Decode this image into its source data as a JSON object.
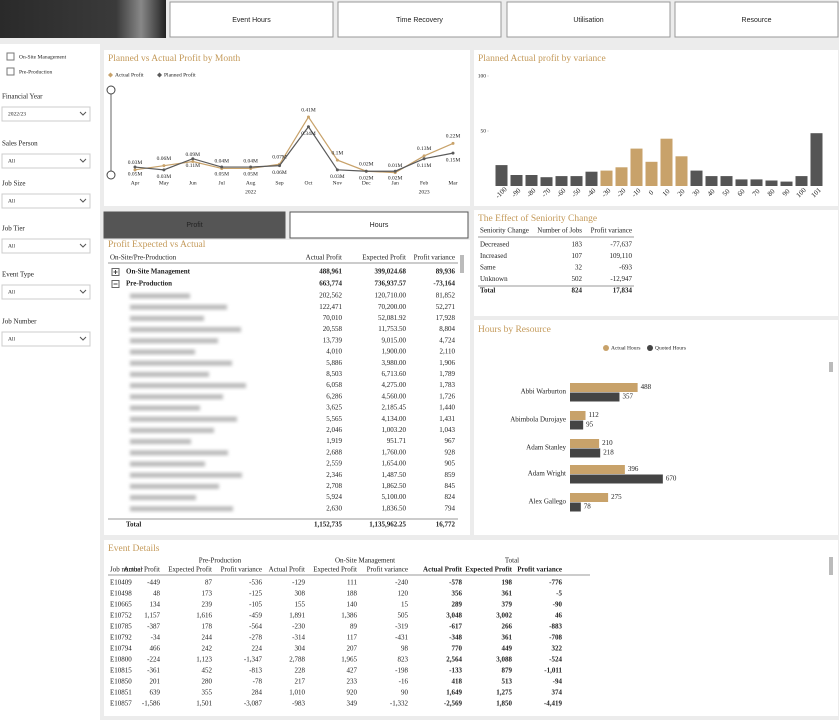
{
  "nav": {
    "buttons": [
      "Event Hours",
      "Time Recovery",
      "Utilisation",
      "Resource"
    ]
  },
  "filters": {
    "checkboxes": [
      "On-Site Management",
      "Pre-Production"
    ],
    "slicers": [
      {
        "label": "Financial Year",
        "value": "2022/23"
      },
      {
        "label": "Sales Person",
        "value": "All"
      },
      {
        "label": "Job Size",
        "value": "All"
      },
      {
        "label": "Job Tier",
        "value": "All"
      },
      {
        "label": "Event Type",
        "value": "All"
      },
      {
        "label": "Job Number",
        "value": "All"
      }
    ]
  },
  "toggle": [
    "Profit",
    "Hours"
  ],
  "chart_data": [
    {
      "type": "line",
      "title": "Planned vs Actual Profit by Month",
      "categories": [
        "Apr",
        "May",
        "Jun",
        "Jul",
        "Aug",
        "Sep",
        "Oct",
        "Nov",
        "Dec",
        "Jan",
        "Feb",
        "Mar"
      ],
      "year_labels": [
        null,
        null,
        null,
        null,
        "2022",
        null,
        null,
        null,
        null,
        null,
        "2023",
        null
      ],
      "series": [
        {
          "name": "Actual Profit",
          "color": "#c8a26a",
          "values": [
            0.03,
            0.06,
            0.09,
            0.04,
            0.04,
            0.07,
            0.41,
            0.1,
            0.02,
            0.01,
            0.13,
            0.22
          ],
          "value_labels": [
            "0.03M",
            "0.06M",
            "0.09M",
            "0.04M",
            "0.04M",
            "0.07M",
            "0.41M",
            "0.1M",
            "0.02M",
            "0.01M",
            "0.13M",
            "0.22M"
          ]
        },
        {
          "name": "Planned Profit",
          "color": "#5a5a5a",
          "values": [
            0.05,
            0.03,
            0.11,
            0.05,
            0.05,
            0.06,
            0.34,
            0.03,
            0.02,
            0.02,
            0.11,
            0.15
          ],
          "value_labels": [
            "0.05M",
            "0.03M",
            "0.11M",
            "0.05M",
            "0.05M",
            "0.06M",
            "0.34M",
            "0.03M",
            "0.02M",
            "0.02M",
            "0.11M",
            "0.15M"
          ]
        }
      ]
    },
    {
      "type": "bar",
      "title": "Planned Actual profit by variance",
      "categories": [
        "-100",
        "-90",
        "-80",
        "-70",
        "-60",
        "-50",
        "-40",
        "-30",
        "-20",
        "-10",
        "0",
        "10",
        "20",
        "30",
        "40",
        "50",
        "60",
        "70",
        "80",
        "90",
        "100",
        "101"
      ],
      "values": [
        19,
        10,
        10,
        8,
        9,
        9,
        13,
        14,
        17,
        34,
        22,
        43,
        27,
        14,
        9,
        9,
        6,
        6,
        5,
        4,
        9,
        48
      ],
      "colors": [
        "#555555",
        "#555555",
        "#555555",
        "#555555",
        "#555555",
        "#555555",
        "#555555",
        "#c8a26a",
        "#c8a26a",
        "#c8a26a",
        "#c8a26a",
        "#c8a26a",
        "#c8a26a",
        "#555555",
        "#555555",
        "#555555",
        "#555555",
        "#555555",
        "#555555",
        "#555555",
        "#555555",
        "#555555"
      ],
      "ylim": [
        0,
        100
      ],
      "yticks": [
        50,
        100
      ]
    },
    {
      "type": "hbar",
      "title": "Hours by Resource",
      "categories": [
        "Abbi Warburton",
        "Abimbola Durojaye",
        "Adam Stanley",
        "Adam Wright",
        "Alex Gallego"
      ],
      "series": [
        {
          "name": "Actual Hours",
          "color": "#c8a26a",
          "values": [
            488,
            112,
            210,
            396,
            275
          ]
        },
        {
          "name": "Quoted Hours",
          "color": "#444444",
          "values": [
            357,
            95,
            218,
            670,
            78
          ]
        }
      ],
      "xlim": [
        0,
        700
      ]
    }
  ],
  "profit_table": {
    "title": "Profit Expected vs Actual",
    "columns": [
      "On-Site/Pre-Production",
      "Actual Profit",
      "Expected Profit",
      "Profit variance"
    ],
    "groups": [
      {
        "label": "On-Site Management",
        "values": [
          "488,961",
          "399,024.68",
          "89,936"
        ]
      },
      {
        "label": "Pre-Production",
        "values": [
          "663,774",
          "736,937.57",
          "-73,164"
        ]
      }
    ],
    "rows": [
      [
        "202,562",
        "120,710.00",
        "81,852"
      ],
      [
        "122,471",
        "70,200.00",
        "52,271"
      ],
      [
        "70,010",
        "52,081.92",
        "17,928"
      ],
      [
        "20,558",
        "11,753.50",
        "8,804"
      ],
      [
        "13,739",
        "9,015.00",
        "4,724"
      ],
      [
        "4,010",
        "1,900.00",
        "2,110"
      ],
      [
        "5,886",
        "3,980.00",
        "1,906"
      ],
      [
        "8,503",
        "6,713.60",
        "1,789"
      ],
      [
        "6,058",
        "4,275.00",
        "1,783"
      ],
      [
        "6,286",
        "4,560.00",
        "1,726"
      ],
      [
        "3,625",
        "2,185.45",
        "1,440"
      ],
      [
        "5,565",
        "4,134.00",
        "1,431"
      ],
      [
        "2,046",
        "1,003.20",
        "1,043"
      ],
      [
        "1,919",
        "951.71",
        "967"
      ],
      [
        "2,688",
        "1,760.00",
        "928"
      ],
      [
        "2,559",
        "1,654.00",
        "905"
      ],
      [
        "2,346",
        "1,487.50",
        "859"
      ],
      [
        "2,708",
        "1,862.50",
        "845"
      ],
      [
        "5,924",
        "5,100.00",
        "824"
      ],
      [
        "2,630",
        "1,836.50",
        "794"
      ]
    ],
    "variance_colors": [
      "#6cc0e5",
      "#6cc0e5",
      "#6cc0e5",
      "#6cc0e5",
      "#6cc0e5",
      "#6cc0e5",
      "#e8823a",
      "#e8823a",
      "#6cc0e5",
      "#6cc0e5",
      "#6cc0e5",
      "#6cc0e5",
      "#6cc0e5",
      "#6cc0e5",
      "#6cc0e5",
      "#e8823a",
      "#6cc0e5",
      "#6cc0e5",
      "#e8823a",
      "#e8823a"
    ],
    "total": {
      "label": "Total",
      "values": [
        "1,152,735",
        "1,135,962.25",
        "16,772"
      ]
    }
  },
  "seniority_table": {
    "title": "The Effect of Seniority Change",
    "columns": [
      "Seniority Change",
      "Number of Jobs",
      "Profit variance"
    ],
    "rows": [
      [
        "Decreased",
        "183",
        "-77,637"
      ],
      [
        "Increased",
        "107",
        "109,110"
      ],
      [
        "Same",
        "32",
        "-693"
      ],
      [
        "Unknown",
        "502",
        "-12,947"
      ]
    ],
    "variance_colors": [
      "#e8823a",
      "#222222",
      "#e8823a",
      "#e8823a"
    ],
    "total": [
      "Total",
      "824",
      "17,834"
    ]
  },
  "event_table": {
    "title": "Event Details",
    "groups": [
      "Pre-Production",
      "On-Site Management",
      "Total"
    ],
    "columns": [
      "Job number",
      "Actual Profit",
      "Expected Profit",
      "Profit variance",
      "Actual Profit",
      "Expected Profit",
      "Profit variance",
      "Actual Profit",
      "Expected Profit",
      "Profit variance"
    ],
    "rows": [
      [
        "E10409",
        "-449",
        "87",
        "-536",
        "-129",
        "111",
        "-240",
        "-578",
        "198",
        "-776"
      ],
      [
        "E10498",
        "48",
        "173",
        "-125",
        "308",
        "188",
        "120",
        "356",
        "361",
        "-5"
      ],
      [
        "E10665",
        "134",
        "239",
        "-105",
        "155",
        "140",
        "15",
        "289",
        "379",
        "-90"
      ],
      [
        "E10752",
        "1,157",
        "1,616",
        "-459",
        "1,891",
        "1,386",
        "505",
        "3,048",
        "3,002",
        "46"
      ],
      [
        "E10785",
        "-387",
        "178",
        "-564",
        "-230",
        "89",
        "-319",
        "-617",
        "266",
        "-883"
      ],
      [
        "E10792",
        "-34",
        "244",
        "-278",
        "-314",
        "117",
        "-431",
        "-348",
        "361",
        "-708"
      ],
      [
        "E10794",
        "466",
        "242",
        "224",
        "304",
        "207",
        "98",
        "770",
        "449",
        "322"
      ],
      [
        "E10800",
        "-224",
        "1,123",
        "-1,347",
        "2,788",
        "1,965",
        "823",
        "2,564",
        "3,088",
        "-524"
      ],
      [
        "E10815",
        "-361",
        "452",
        "-813",
        "228",
        "427",
        "-198",
        "-133",
        "879",
        "-1,011"
      ],
      [
        "E10850",
        "201",
        "280",
        "-78",
        "217",
        "233",
        "-16",
        "418",
        "513",
        "-94"
      ],
      [
        "E10851",
        "639",
        "355",
        "284",
        "1,010",
        "920",
        "90",
        "1,649",
        "1,275",
        "374"
      ],
      [
        "E10857",
        "-1,586",
        "1,501",
        "-3,087",
        "-983",
        "349",
        "-1,332",
        "-2,569",
        "1,850",
        "-4,419"
      ]
    ]
  }
}
